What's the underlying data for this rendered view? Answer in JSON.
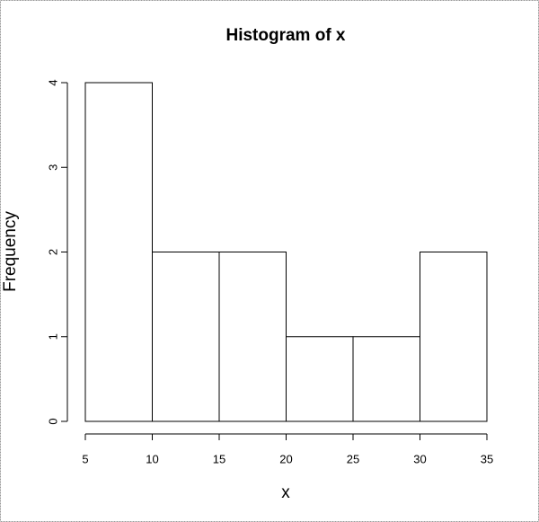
{
  "chart_data": {
    "type": "histogram",
    "title": "Histogram of x",
    "x_label": "x",
    "y_label": "Frequency",
    "bins": [
      5,
      10,
      15,
      20,
      25,
      30,
      35
    ],
    "values": [
      4,
      2,
      2,
      1,
      1,
      2
    ],
    "color": "#ffffff",
    "edgecolor": "#000000",
    "xlim": [
      5,
      35
    ],
    "xticks": [
      5,
      10,
      15,
      20,
      25,
      30,
      35
    ],
    "ylim": [
      0,
      4
    ],
    "yticks": [
      0,
      1,
      2,
      3,
      4
    ]
  }
}
